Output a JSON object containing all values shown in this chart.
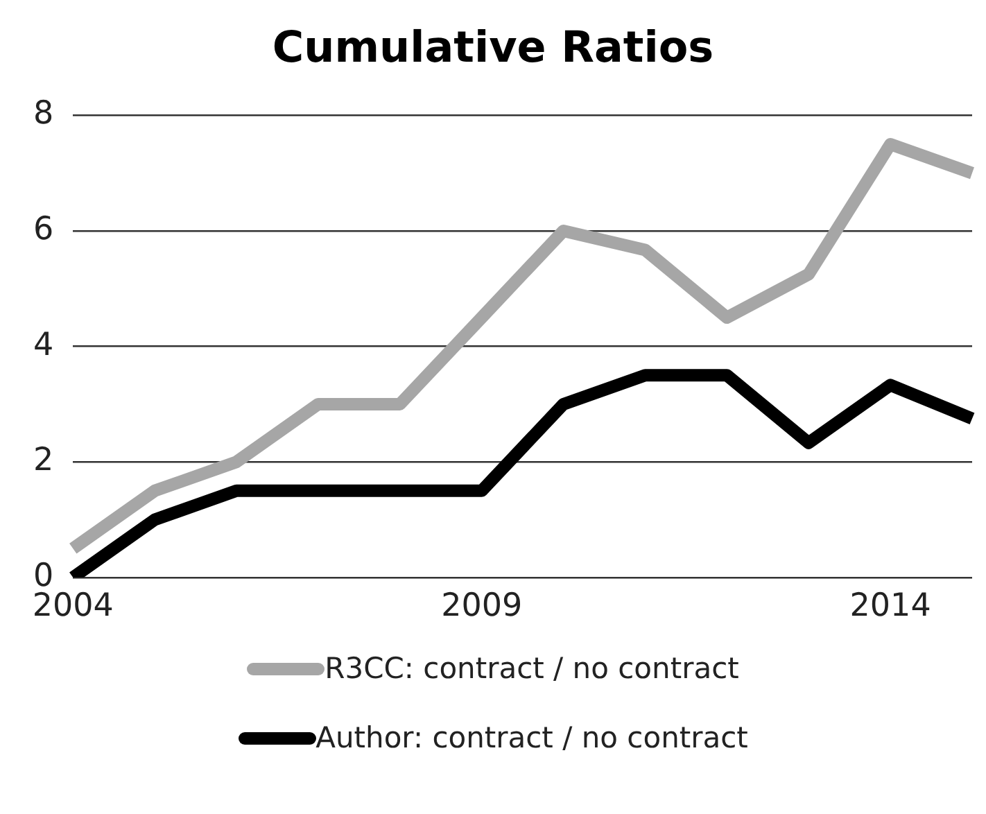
{
  "chart_data": {
    "type": "line",
    "title": "Cumulative Ratios",
    "categories": [
      "2004",
      null,
      null,
      null,
      null,
      "2009",
      null,
      null,
      null,
      null,
      "2014",
      null
    ],
    "series": [
      {
        "name": "R3CC: contract / no contract",
        "color": "#a6a6a6",
        "values": [
          0.5,
          1.5,
          2,
          3,
          3,
          4.5,
          6,
          5.67,
          4.5,
          5.25,
          7.5,
          7
        ]
      },
      {
        "name": "Author: contract / no contract",
        "color": "#000000",
        "values": [
          0,
          1,
          1.5,
          1.5,
          1.5,
          1.5,
          3,
          3.5,
          3.5,
          2.33,
          3.33,
          2.75
        ]
      }
    ],
    "ylim": [
      0,
      8
    ],
    "yticks": [
      0,
      2,
      4,
      6,
      8
    ],
    "grid": "y",
    "legend": "bottom",
    "marker": "none",
    "line_style": "solid"
  }
}
